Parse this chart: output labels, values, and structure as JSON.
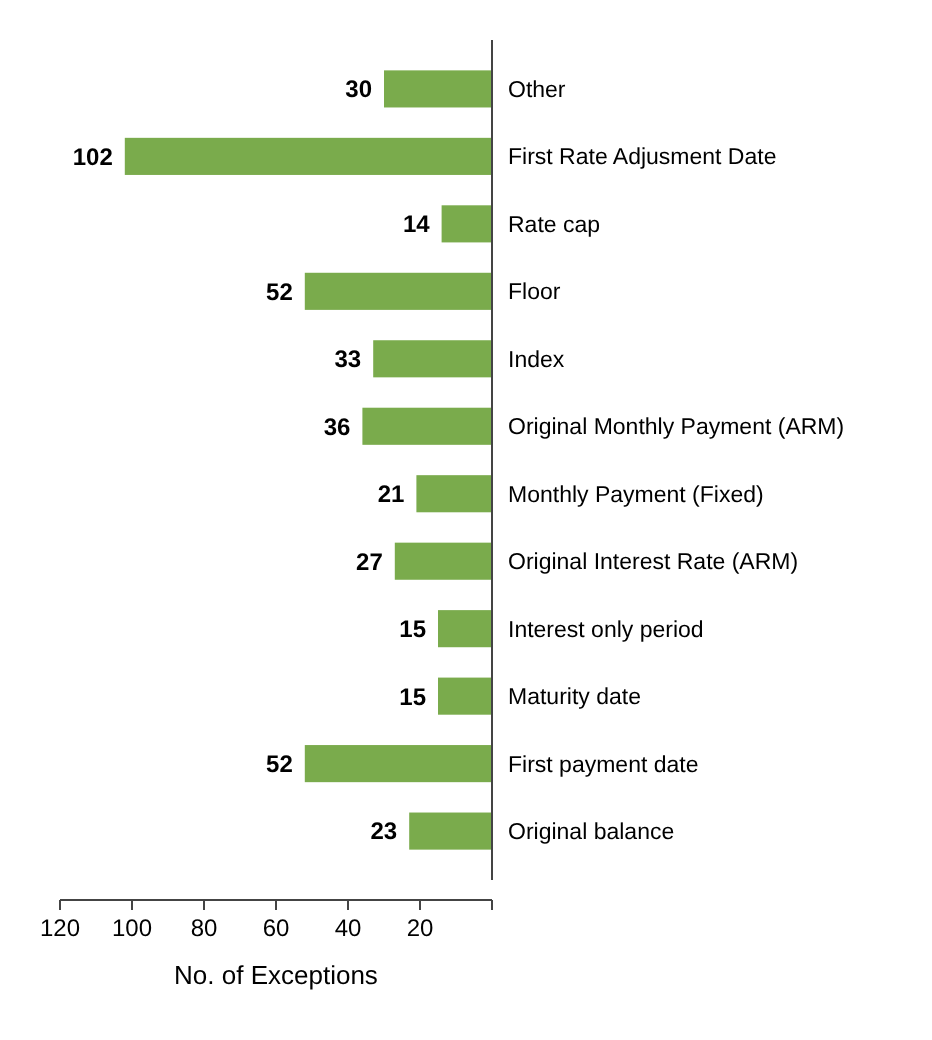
{
  "chart_data": {
    "type": "bar",
    "orientation": "horizontal",
    "categories": [
      "Other",
      "First Rate Adjusment Date",
      "Rate cap",
      "Floor",
      "Index",
      "Original Monthly Payment (ARM)",
      "Monthly Payment (Fixed)",
      "Original Interest Rate (ARM)",
      "Interest only period",
      "Maturity date",
      "First payment date",
      "Original balance"
    ],
    "values": [
      30,
      102,
      14,
      52,
      33,
      36,
      21,
      27,
      15,
      15,
      52,
      23
    ],
    "color": "#7aab4c",
    "data_labels": true,
    "xlabel": "No. of Exceptions",
    "xlim": [
      120,
      0
    ],
    "xticks": [
      {
        "value": 0,
        "label": null
      },
      20,
      40,
      60,
      80,
      100,
      120
    ]
  }
}
